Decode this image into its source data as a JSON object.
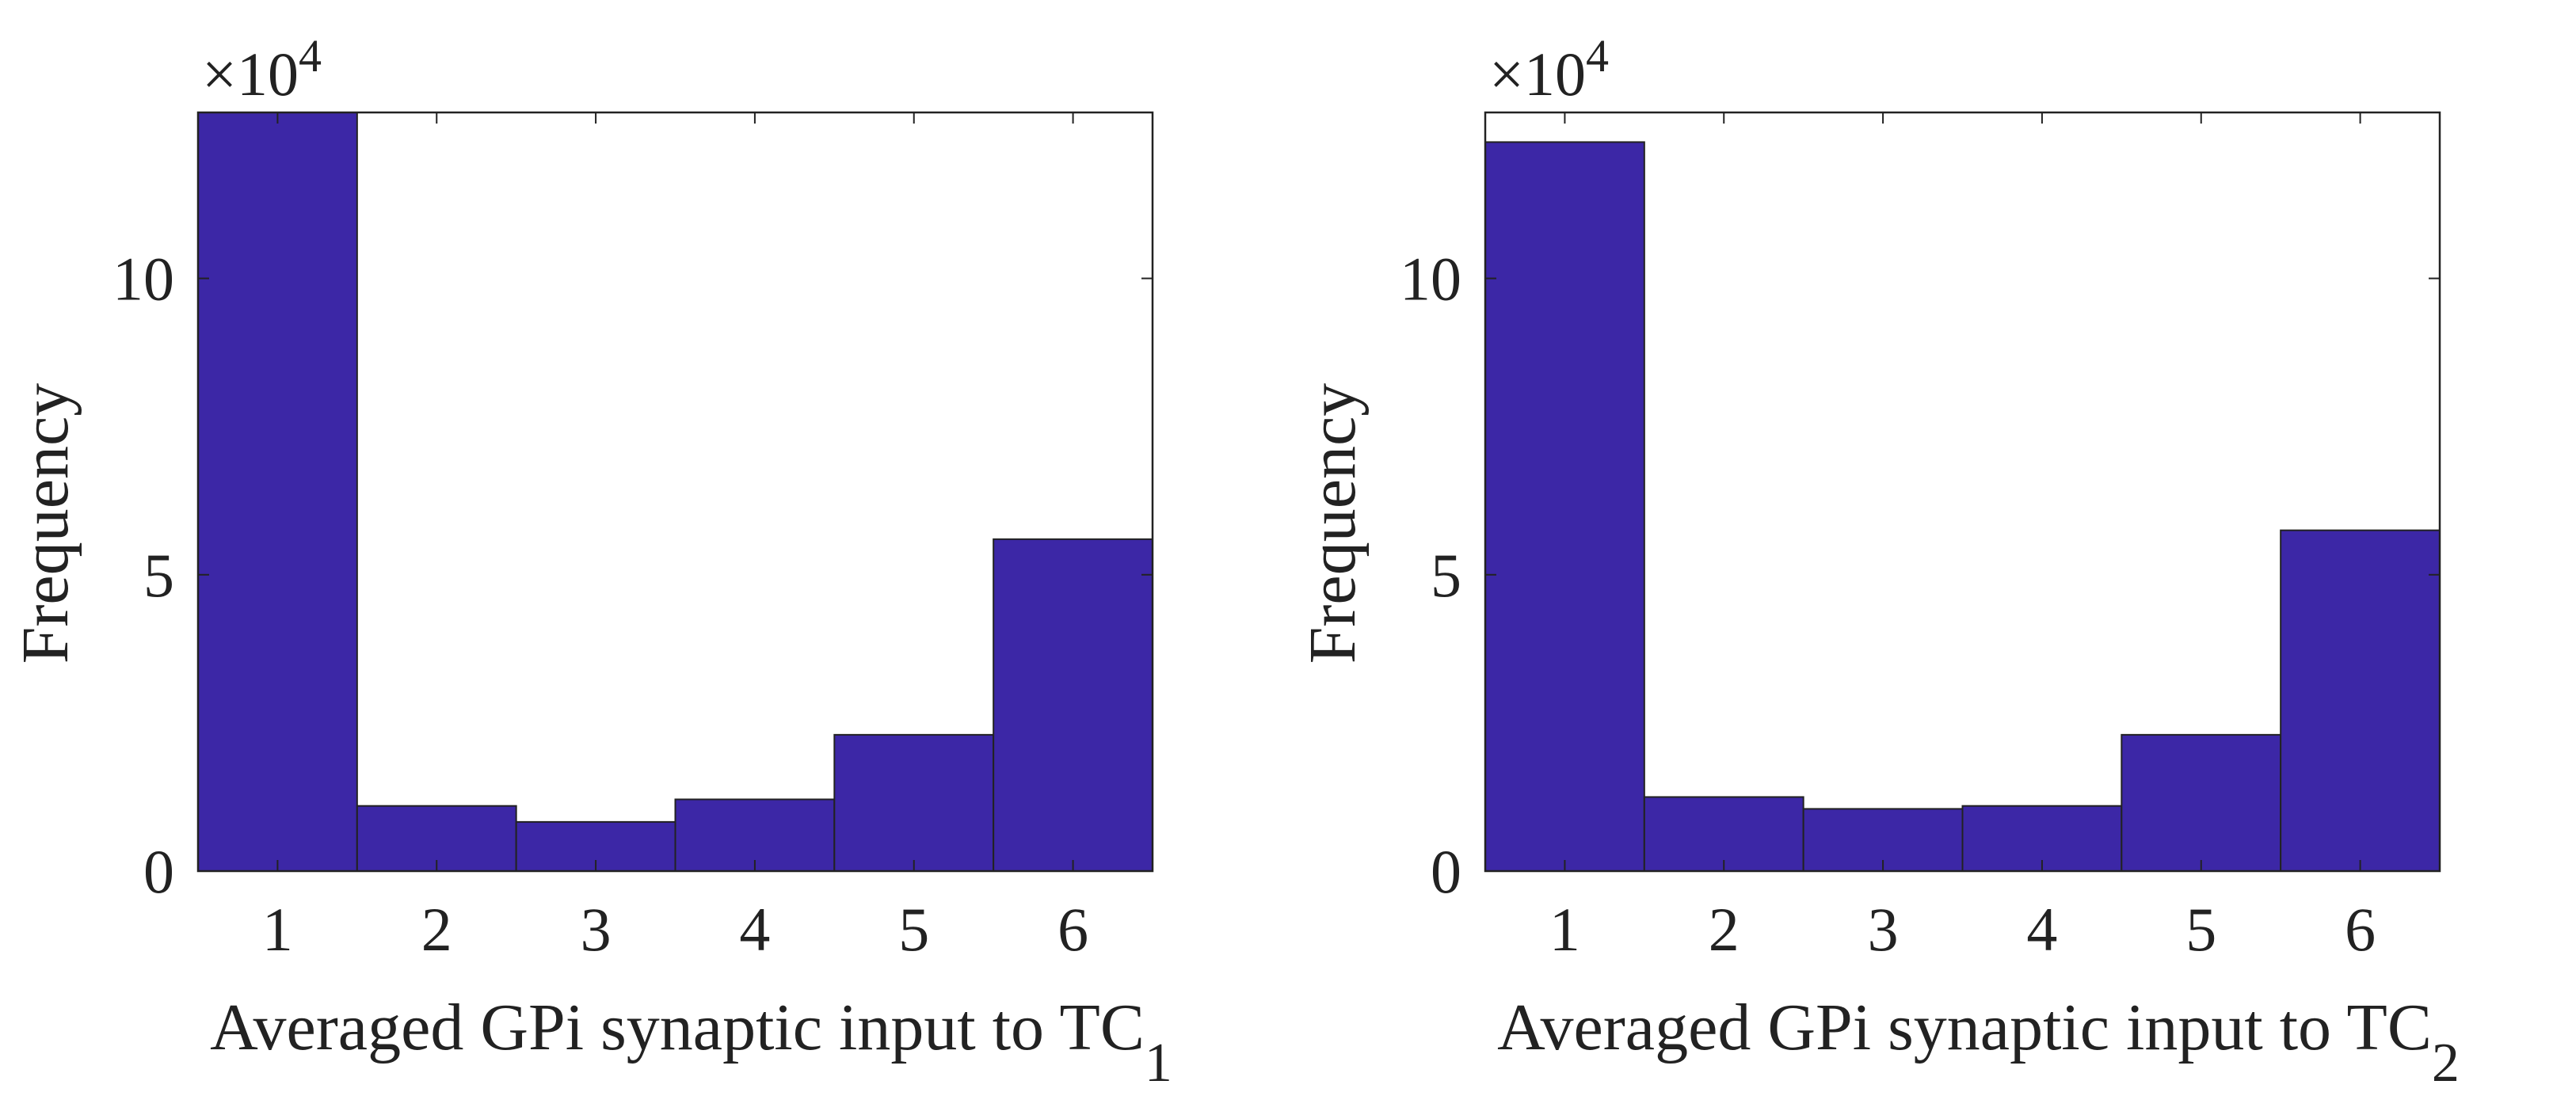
{
  "chart_data": [
    {
      "type": "bar",
      "categories": [
        "1",
        "2",
        "3",
        "4",
        "5",
        "6"
      ],
      "values": [
        128000,
        11000,
        8300,
        12100,
        23000,
        56000
      ],
      "bar_color": "#3c27a6",
      "edge_color": "#222222",
      "ylabel": "Frequency",
      "xlabel": {
        "main": "Averaged GPi synaptic input to TC",
        "subscript": "1"
      },
      "y_scale_note": {
        "prefix": "×10",
        "exponent": "4"
      },
      "ylim": [
        0,
        128000
      ],
      "yticks": [
        {
          "value": 0,
          "label": "0"
        },
        {
          "value": 50000,
          "label": "5"
        },
        {
          "value": 100000,
          "label": "10"
        }
      ]
    },
    {
      "type": "bar",
      "categories": [
        "1",
        "2",
        "3",
        "4",
        "5",
        "6"
      ],
      "values": [
        123000,
        12500,
        10500,
        11000,
        23000,
        57500
      ],
      "bar_color": "#3c27a6",
      "edge_color": "#222222",
      "ylabel": "Frequency",
      "xlabel": {
        "main": "Averaged GPi synaptic input to TC",
        "subscript": "2"
      },
      "y_scale_note": {
        "prefix": "×10",
        "exponent": "4"
      },
      "ylim": [
        0,
        128000
      ],
      "yticks": [
        {
          "value": 0,
          "label": "0"
        },
        {
          "value": 50000,
          "label": "5"
        },
        {
          "value": 100000,
          "label": "10"
        }
      ]
    }
  ]
}
